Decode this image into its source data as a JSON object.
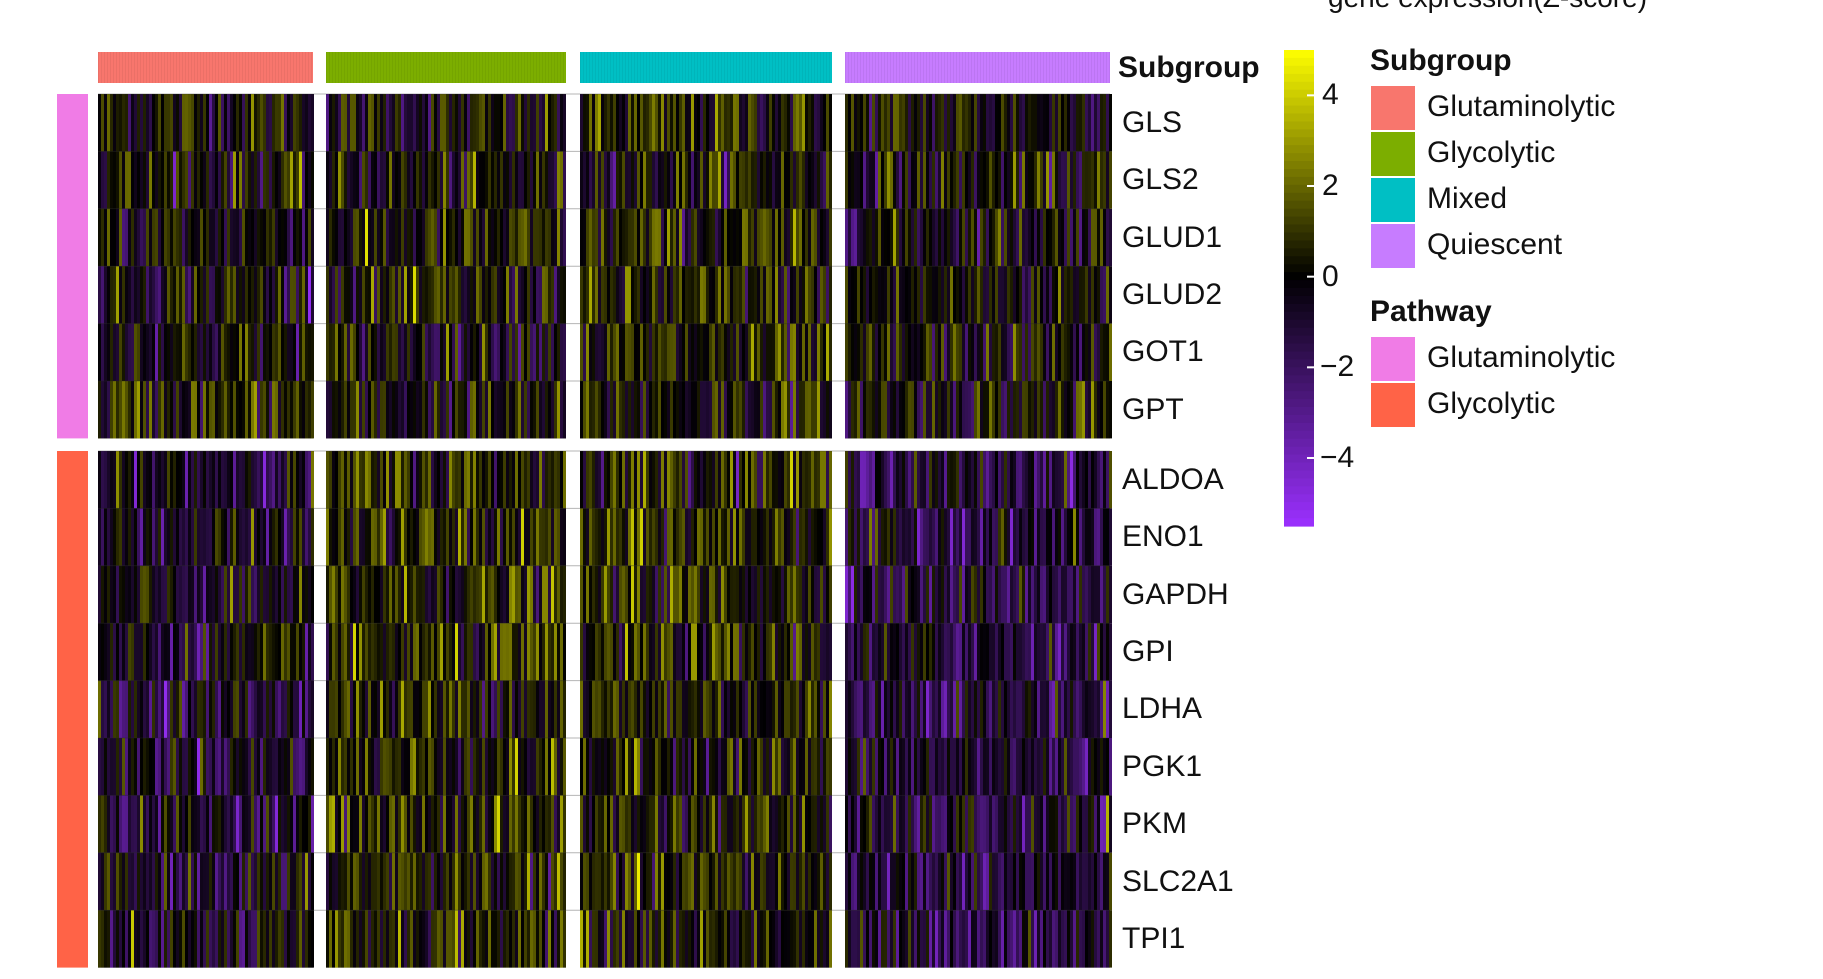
{
  "chart_data": {
    "type": "heatmap",
    "title": "gene expression(Z-score)",
    "column_annotation_title": "Subgroup",
    "column_groups": [
      {
        "name": "Glutaminolytic",
        "color": "#F8766D"
      },
      {
        "name": "Glycolytic",
        "color": "#7CAE00"
      },
      {
        "name": "Mixed",
        "color": "#00BFC4"
      },
      {
        "name": "Quiescent",
        "color": "#C77CFF"
      }
    ],
    "row_annotation_title": "Pathway",
    "row_groups": [
      {
        "name": "Glutaminolytic",
        "color": "#F07CE6",
        "genes": [
          "GLS",
          "GLS2",
          "GLUD1",
          "GLUD2",
          "GOT1",
          "GPT"
        ]
      },
      {
        "name": "Glycolytic",
        "color": "#FF6347",
        "genes": [
          "ALDOA",
          "ENO1",
          "GAPDH",
          "GPI",
          "LDHA",
          "PGK1",
          "PKM",
          "SLC2A1",
          "TPI1"
        ]
      }
    ],
    "rows": [
      "GLS",
      "GLS2",
      "GLUD1",
      "GLUD2",
      "GOT1",
      "GPT",
      "ALDOA",
      "ENO1",
      "GAPDH",
      "GPI",
      "LDHA",
      "PGK1",
      "PKM",
      "SLC2A1",
      "TPI1"
    ],
    "mean_zscore": {
      "GLS": [
        1.0,
        0.2,
        1.4,
        0.6
      ],
      "GLS2": [
        0.8,
        0.4,
        1.0,
        0.5
      ],
      "GLUD1": [
        0.5,
        0.8,
        1.2,
        0.6
      ],
      "GLUD2": [
        0.6,
        0.9,
        1.0,
        0.6
      ],
      "GOT1": [
        0.7,
        0.5,
        1.0,
        0.3
      ],
      "GPT": [
        1.5,
        0.4,
        0.9,
        0.7
      ],
      "ALDOA": [
        -0.6,
        1.6,
        1.8,
        -1.4
      ],
      "ENO1": [
        -0.6,
        1.5,
        1.8,
        -1.5
      ],
      "GAPDH": [
        -0.8,
        1.6,
        1.5,
        -1.3
      ],
      "GPI": [
        -0.5,
        1.4,
        1.2,
        -1.3
      ],
      "LDHA": [
        -0.9,
        1.5,
        1.3,
        -1.4
      ],
      "PGK1": [
        -0.6,
        1.6,
        1.1,
        -1.3
      ],
      "PKM": [
        -0.8,
        1.7,
        1.2,
        -1.5
      ],
      "SLC2A1": [
        -0.7,
        1.4,
        1.2,
        -1.4
      ],
      "TPI1": [
        -0.8,
        1.6,
        1.1,
        -1.6
      ]
    },
    "colorbar": {
      "min": -5.5,
      "max": 5,
      "ticks": [
        4,
        2,
        0,
        -2,
        -4
      ],
      "tick_labels": [
        "4",
        "2",
        "0",
        "−2",
        "−4"
      ],
      "colors": [
        "#9B30FF",
        "#000000",
        "#FFFF00"
      ]
    }
  }
}
